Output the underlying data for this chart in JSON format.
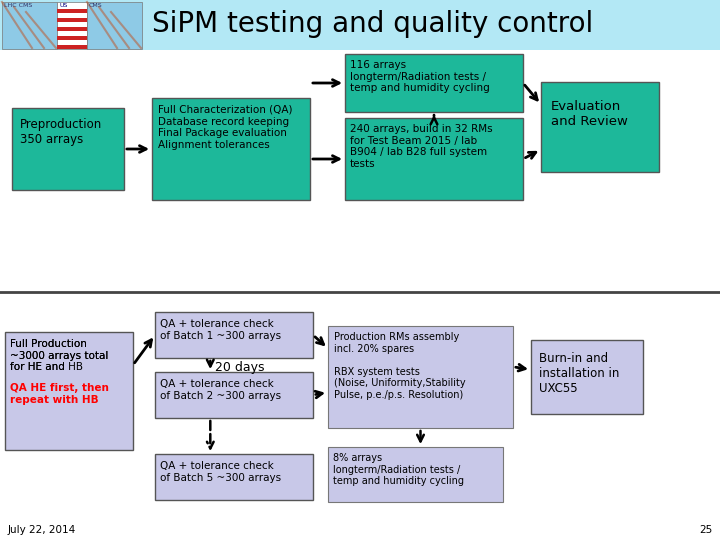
{
  "title": "SiPM testing and quality control",
  "bg_color": "#ffffff",
  "header_bg": "#b3e8f5",
  "teal": "#1db89a",
  "lavender": "#c8c8e8",
  "date_text": "July 22, 2014",
  "page_num": "25",
  "preproduction_text": "Preproduction\n350 arrays",
  "full_char_text": "Full Characterization (QA)\nDatabase record keeping\nFinal Package evaluation\nAlignment tolerances",
  "box116_text": "116 arrays\nlongterm/Radiation tests /\ntemp and humidity cycling",
  "box240_text": "240 arrays, build in 32 RMs\nfor Test Beam 2015 / lab\nB904 / lab B28 full system\ntests",
  "eval_text": "Evaluation\nand Review",
  "fp_normal": "Full Production\n~3000 arrays total\nfor HE and HB",
  "fp_bold_normal": "for HE and ",
  "fp_bold_hb": "HB",
  "fp_red": "QA HE first, then\nrepeat with HB",
  "batch1_text": "QA + tolerance check\nof Batch 1 ~300 arrays",
  "batch2_text": "QA + tolerance check\nof Batch 2 ~300 arrays",
  "batch5_text": "QA + tolerance check\nof Batch 5 ~300 arrays",
  "days20_text": "20 days",
  "prod_rm_text": "Production RMs assembly\nincl. 20% spares\n\nRBX system tests\n(Noise, Uniformity,Stability\nPulse, p.e./p.s. Resolution)",
  "pct8_text": "8% arrays\nlongterm/Radiation tests /\ntemp and humidity cycling",
  "burnin_text": "Burn-in and\ninstallation in\nUXC55"
}
